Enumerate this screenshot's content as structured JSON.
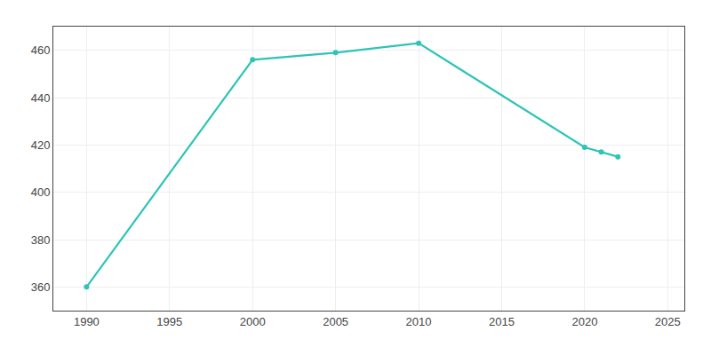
{
  "chart_data": {
    "type": "line",
    "x": [
      1990,
      2000,
      2005,
      2010,
      2020,
      2021,
      2022
    ],
    "values": [
      360,
      456,
      459,
      463,
      419,
      417,
      415
    ],
    "color": "#2ec4b6",
    "marker": "circle",
    "line_style": "solid",
    "xlim": [
      1988,
      2026
    ],
    "xticks": [
      1990,
      1995,
      2000,
      2005,
      2010,
      2015,
      2020,
      2025
    ],
    "ylim": [
      350,
      470
    ],
    "yticks": [
      360,
      380,
      400,
      420,
      440,
      460
    ],
    "grid": true
  }
}
